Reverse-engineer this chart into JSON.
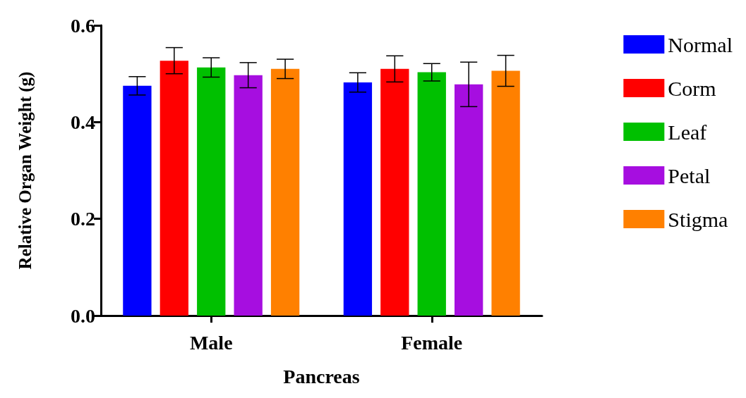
{
  "chart_data": {
    "type": "bar",
    "xlabel": "Pancreas",
    "ylabel": "Relative Organ Weight (g)",
    "categories": [
      "Male",
      "Female"
    ],
    "series": [
      {
        "name": "Normal",
        "color": "#0000ff",
        "values": [
          0.475,
          0.482
        ],
        "errors": [
          0.019,
          0.02
        ]
      },
      {
        "name": "Corm",
        "color": "#ff0000",
        "values": [
          0.527,
          0.51
        ],
        "errors": [
          0.027,
          0.027
        ]
      },
      {
        "name": "Leaf",
        "color": "#00c000",
        "values": [
          0.513,
          0.503
        ],
        "errors": [
          0.02,
          0.018
        ]
      },
      {
        "name": "Petal",
        "color": "#a60ee0",
        "values": [
          0.497,
          0.478
        ],
        "errors": [
          0.026,
          0.046
        ]
      },
      {
        "name": "Stigma",
        "color": "#ff8000",
        "values": [
          0.51,
          0.506
        ],
        "errors": [
          0.02,
          0.032
        ]
      }
    ],
    "ylim": [
      0,
      0.6
    ],
    "yticks": [
      {
        "value": 0,
        "label": "0.0"
      },
      0.2,
      0.4,
      0.6
    ],
    "grid": false,
    "legend": "right"
  }
}
